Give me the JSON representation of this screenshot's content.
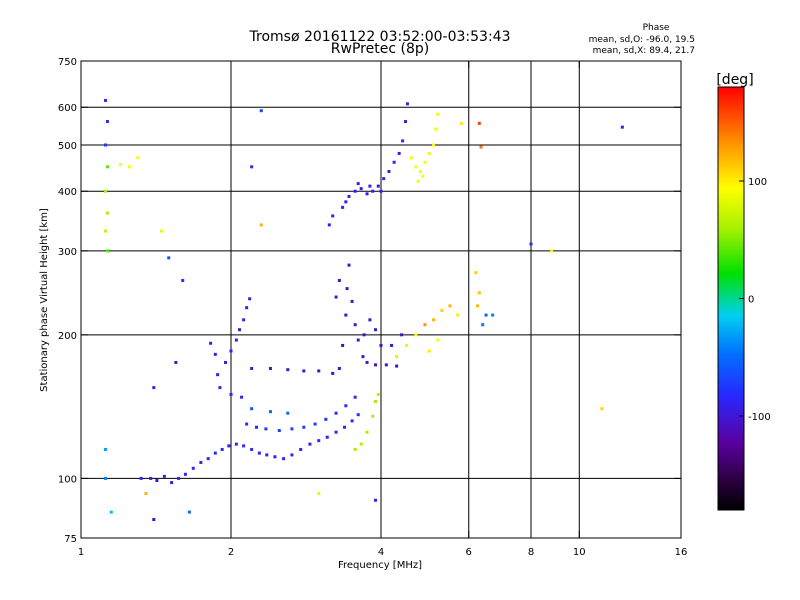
{
  "chart_data": {
    "type": "scatter",
    "title": "Tromsø 20161122 03:52:00-03:53:43",
    "subtitle": "RwPretec (8p)",
    "xlabel": "Frequency [MHz]",
    "ylabel": "Stationary phase Virtual Height [km]",
    "x_scale": "log",
    "y_scale": "log",
    "xlim": [
      1,
      16
    ],
    "ylim": [
      75,
      750
    ],
    "x_ticks": [
      1,
      2,
      4,
      6,
      8,
      10,
      16
    ],
    "y_ticks": [
      75,
      100,
      200,
      300,
      400,
      500,
      600,
      750
    ],
    "x_grid": [
      2,
      4,
      6,
      8,
      10
    ],
    "y_grid": [
      100,
      200,
      300,
      400,
      500,
      600
    ],
    "color_label": "[deg]",
    "color_ticks": [
      100,
      0,
      -100
    ],
    "color_range": [
      -180,
      180
    ],
    "stats": {
      "heading": "Phase",
      "line1": "mean, sd,O: -96.0, 19.5",
      "line2": "mean, sd,X: 89.4, 21.7"
    },
    "series": [
      {
        "points": [
          [
            1.32,
            100,
            -85
          ],
          [
            1.38,
            100,
            -95
          ],
          [
            1.42,
            99,
            -100
          ],
          [
            1.47,
            101,
            -90
          ],
          [
            1.52,
            98,
            -95
          ],
          [
            1.57,
            100,
            -90
          ],
          [
            1.62,
            102,
            -88
          ],
          [
            1.68,
            105,
            -85
          ],
          [
            1.74,
            108,
            -88
          ],
          [
            1.8,
            110,
            -85
          ],
          [
            1.86,
            113,
            -82
          ],
          [
            1.92,
            115,
            -85
          ],
          [
            1.98,
            117,
            -88
          ],
          [
            2.05,
            118,
            -85
          ],
          [
            2.12,
            117,
            -82
          ],
          [
            2.2,
            115,
            -80
          ],
          [
            2.28,
            113,
            -85
          ],
          [
            2.36,
            112,
            -90
          ],
          [
            2.45,
            111,
            -88
          ],
          [
            2.55,
            110,
            -85
          ],
          [
            2.65,
            112,
            -82
          ],
          [
            2.76,
            115,
            -85
          ],
          [
            2.88,
            118,
            -88
          ],
          [
            3.0,
            120,
            -85
          ],
          [
            3.12,
            122,
            -88
          ],
          [
            3.25,
            125,
            -85
          ],
          [
            3.38,
            128,
            -82
          ],
          [
            3.5,
            132,
            -85
          ],
          [
            3.6,
            136,
            -80
          ],
          [
            2.15,
            130,
            -85
          ],
          [
            2.25,
            128,
            -82
          ],
          [
            2.35,
            127,
            -75
          ],
          [
            2.5,
            126,
            -72
          ],
          [
            2.65,
            127,
            -70
          ],
          [
            2.8,
            128,
            -72
          ],
          [
            2.95,
            130,
            -75
          ],
          [
            3.1,
            133,
            -78
          ],
          [
            3.25,
            137,
            -80
          ],
          [
            3.4,
            142,
            -82
          ],
          [
            3.55,
            148,
            -85
          ],
          [
            1.9,
            155,
            -90
          ],
          [
            2.0,
            150,
            -88
          ],
          [
            2.1,
            148,
            -85
          ],
          [
            2.2,
            140,
            -60
          ],
          [
            2.4,
            138,
            -55
          ],
          [
            2.6,
            137,
            -50
          ],
          [
            1.88,
            165,
            -90
          ],
          [
            1.95,
            175,
            -92
          ],
          [
            2.0,
            185,
            -90
          ],
          [
            2.05,
            195,
            -92
          ],
          [
            2.08,
            205,
            -95
          ],
          [
            2.12,
            215,
            -90
          ],
          [
            2.15,
            228,
            -90
          ],
          [
            2.18,
            238,
            -92
          ],
          [
            1.82,
            192,
            -90
          ],
          [
            1.86,
            182,
            -88
          ],
          [
            2.2,
            170,
            -95
          ],
          [
            2.4,
            170,
            -100
          ],
          [
            2.6,
            169,
            -100
          ],
          [
            2.8,
            168,
            -105
          ],
          [
            3.0,
            168,
            -100
          ],
          [
            3.2,
            166,
            -110
          ],
          [
            3.3,
            170,
            -105
          ],
          [
            3.35,
            190,
            -110
          ],
          [
            3.4,
            220,
            -105
          ],
          [
            3.42,
            250,
            -110
          ],
          [
            3.45,
            280,
            -105
          ],
          [
            3.25,
            240,
            -100
          ],
          [
            3.3,
            260,
            -100
          ],
          [
            3.5,
            235,
            -110
          ],
          [
            3.55,
            210,
            -105
          ],
          [
            3.6,
            195,
            -100
          ],
          [
            3.68,
            180,
            -100
          ],
          [
            3.75,
            175,
            -95
          ],
          [
            3.9,
            173,
            -110
          ],
          [
            4.1,
            173,
            -105
          ],
          [
            4.3,
            172,
            -110
          ],
          [
            3.7,
            200,
            -110
          ],
          [
            3.8,
            215,
            -105
          ],
          [
            3.9,
            205,
            -105
          ],
          [
            4.0,
            190,
            -110
          ],
          [
            4.2,
            190,
            -105
          ],
          [
            4.4,
            200,
            -108
          ],
          [
            3.15,
            340,
            -92
          ],
          [
            3.2,
            355,
            -90
          ],
          [
            3.35,
            370,
            -88
          ],
          [
            3.45,
            390,
            -90
          ],
          [
            3.55,
            400,
            -92
          ],
          [
            3.65,
            405,
            -95
          ],
          [
            3.75,
            395,
            -90
          ],
          [
            3.85,
            400,
            -92
          ],
          [
            3.95,
            410,
            -95
          ],
          [
            4.05,
            425,
            -95
          ],
          [
            4.15,
            440,
            -92
          ],
          [
            4.25,
            460,
            -90
          ],
          [
            4.35,
            480,
            -88
          ],
          [
            4.42,
            510,
            -92
          ],
          [
            4.48,
            560,
            -95
          ],
          [
            4.52,
            610,
            -92
          ],
          [
            3.4,
            380,
            -90
          ],
          [
            3.6,
            415,
            -92
          ],
          [
            3.8,
            410,
            -95
          ],
          [
            4.0,
            400,
            -92
          ],
          [
            1.12,
            620,
            -85
          ],
          [
            1.13,
            560,
            -80
          ],
          [
            1.12,
            500,
            -75
          ],
          [
            1.13,
            450,
            40
          ],
          [
            1.12,
            400,
            60
          ],
          [
            1.13,
            360,
            65
          ],
          [
            1.12,
            330,
            70
          ],
          [
            1.13,
            300,
            40
          ],
          [
            3.55,
            115,
            60
          ],
          [
            3.65,
            118,
            62
          ],
          [
            3.75,
            125,
            60
          ],
          [
            3.85,
            135,
            62
          ],
          [
            3.9,
            145,
            60
          ],
          [
            3.95,
            150,
            65
          ],
          [
            4.6,
            470,
            90
          ],
          [
            4.7,
            450,
            92
          ],
          [
            4.8,
            440,
            90
          ],
          [
            4.9,
            460,
            92
          ],
          [
            5.0,
            480,
            90
          ],
          [
            5.1,
            500,
            92
          ],
          [
            5.15,
            540,
            90
          ],
          [
            5.2,
            580,
            90
          ],
          [
            4.75,
            420,
            92
          ],
          [
            4.85,
            430,
            90
          ],
          [
            4.3,
            180,
            80
          ],
          [
            4.5,
            190,
            85
          ],
          [
            4.7,
            200,
            90
          ],
          [
            4.9,
            210,
            130
          ],
          [
            5.1,
            215,
            120
          ],
          [
            5.3,
            225,
            110
          ],
          [
            5.5,
            230,
            120
          ],
          [
            5.7,
            220,
            100
          ],
          [
            5.0,
            185,
            100
          ],
          [
            5.2,
            195,
            95
          ],
          [
            6.2,
            270,
            110
          ],
          [
            6.3,
            245,
            115
          ],
          [
            6.25,
            230,
            120
          ],
          [
            6.5,
            220,
            -50
          ],
          [
            6.7,
            220,
            -40
          ],
          [
            6.4,
            210,
            -45
          ],
          [
            1.2,
            455,
            95
          ],
          [
            1.25,
            450,
            92
          ],
          [
            1.3,
            470,
            90
          ],
          [
            1.45,
            330,
            85
          ],
          [
            1.5,
            290,
            -60
          ],
          [
            1.6,
            260,
            -80
          ],
          [
            1.55,
            175,
            -100
          ],
          [
            1.4,
            155,
            -90
          ],
          [
            1.12,
            100,
            -40
          ],
          [
            1.12,
            115,
            -30
          ],
          [
            1.15,
            85,
            -20
          ],
          [
            1.35,
            93,
            120
          ],
          [
            1.4,
            82,
            -110
          ],
          [
            1.65,
            85,
            -50
          ],
          [
            2.3,
            340,
            120
          ],
          [
            2.3,
            590,
            -70
          ],
          [
            2.2,
            450,
            -80
          ],
          [
            3.0,
            93,
            100
          ],
          [
            3.9,
            90,
            -90
          ],
          [
            5.8,
            555,
            100
          ],
          [
            6.3,
            555,
            160
          ],
          [
            6.35,
            495,
            140
          ],
          [
            8.0,
            310,
            -80
          ],
          [
            8.8,
            300,
            90
          ],
          [
            12.2,
            545,
            -90
          ],
          [
            11.1,
            140,
            110
          ]
        ]
      }
    ]
  }
}
